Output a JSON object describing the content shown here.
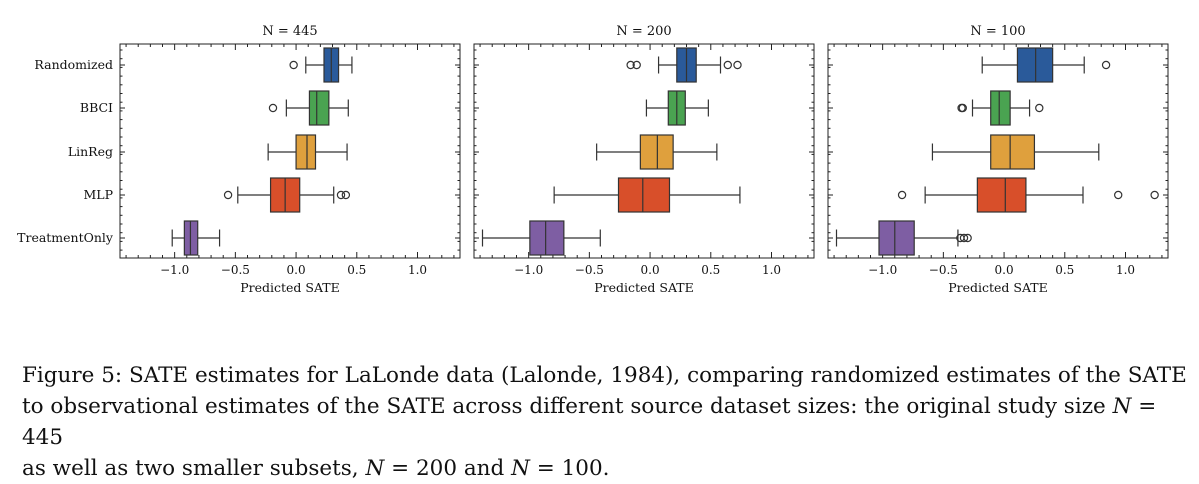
{
  "chart_data": [
    {
      "type": "boxplot",
      "title": "N = 445",
      "xlabel": "Predicted SATE",
      "xlim": [
        -1.45,
        1.35
      ],
      "xticks": [
        -1.0,
        -0.5,
        0.0,
        0.5,
        1.0
      ],
      "xtick_labels": [
        "−1.0",
        "−0.5",
        "0.0",
        "0.5",
        "1.0"
      ],
      "categories": [
        "Randomized",
        "BBCI",
        "LinReg",
        "MLP",
        "TreatmentOnly"
      ],
      "boxes": [
        {
          "category": "Randomized",
          "color": "#2a5a9a",
          "whislo": 0.08,
          "q1": 0.23,
          "med": 0.29,
          "q3": 0.35,
          "whishi": 0.46,
          "fliers": [
            -0.02
          ]
        },
        {
          "category": "BBCI",
          "color": "#4aa351",
          "whislo": -0.08,
          "q1": 0.11,
          "med": 0.17,
          "q3": 0.27,
          "whishi": 0.43,
          "fliers": [
            -0.19
          ]
        },
        {
          "category": "LinReg",
          "color": "#dfa03d",
          "whislo": -0.23,
          "q1": 0.0,
          "med": 0.09,
          "q3": 0.16,
          "whishi": 0.42,
          "fliers": []
        },
        {
          "category": "MLP",
          "color": "#d84f2a",
          "whislo": -0.48,
          "q1": -0.21,
          "med": -0.09,
          "q3": 0.03,
          "whishi": 0.31,
          "fliers": [
            -0.56,
            0.37,
            0.41
          ]
        },
        {
          "category": "TreatmentOnly",
          "color": "#7e5ea3",
          "whislo": -1.02,
          "q1": -0.92,
          "med": -0.87,
          "q3": -0.81,
          "whishi": -0.63,
          "fliers": []
        }
      ]
    },
    {
      "type": "boxplot",
      "title": "N = 200",
      "xlabel": "Predicted SATE",
      "xlim": [
        -1.45,
        1.35
      ],
      "xticks": [
        -1.0,
        -0.5,
        0.0,
        0.5,
        1.0
      ],
      "xtick_labels": [
        "−1.0",
        "−0.5",
        "0.0",
        "0.5",
        "1.0"
      ],
      "categories": [
        "Randomized",
        "BBCI",
        "LinReg",
        "MLP",
        "TreatmentOnly"
      ],
      "boxes": [
        {
          "category": "Randomized",
          "color": "#2a5a9a",
          "whislo": 0.07,
          "q1": 0.22,
          "med": 0.3,
          "q3": 0.38,
          "whishi": 0.58,
          "fliers": [
            -0.16,
            -0.11,
            0.64,
            0.72
          ]
        },
        {
          "category": "BBCI",
          "color": "#4aa351",
          "whislo": -0.03,
          "q1": 0.15,
          "med": 0.22,
          "q3": 0.29,
          "whishi": 0.48,
          "fliers": []
        },
        {
          "category": "LinReg",
          "color": "#dfa03d",
          "whislo": -0.44,
          "q1": -0.08,
          "med": 0.06,
          "q3": 0.19,
          "whishi": 0.55,
          "fliers": []
        },
        {
          "category": "MLP",
          "color": "#d84f2a",
          "whislo": -0.79,
          "q1": -0.26,
          "med": -0.06,
          "q3": 0.16,
          "whishi": 0.74,
          "fliers": []
        },
        {
          "category": "TreatmentOnly",
          "color": "#7e5ea3",
          "whislo": -1.38,
          "q1": -0.99,
          "med": -0.86,
          "q3": -0.71,
          "whishi": -0.41,
          "fliers": []
        }
      ]
    },
    {
      "type": "boxplot",
      "title": "N = 100",
      "xlabel": "Predicted SATE",
      "xlim": [
        -1.45,
        1.35
      ],
      "xticks": [
        -1.0,
        -0.5,
        0.0,
        0.5,
        1.0
      ],
      "xtick_labels": [
        "−1.0",
        "−0.5",
        "0.0",
        "0.5",
        "1.0"
      ],
      "categories": [
        "Randomized",
        "BBCI",
        "LinReg",
        "MLP",
        "TreatmentOnly"
      ],
      "boxes": [
        {
          "category": "Randomized",
          "color": "#2a5a9a",
          "whislo": -0.18,
          "q1": 0.11,
          "med": 0.26,
          "q3": 0.4,
          "whishi": 0.66,
          "fliers": [
            0.84
          ]
        },
        {
          "category": "BBCI",
          "color": "#4aa351",
          "whislo": -0.26,
          "q1": -0.11,
          "med": -0.04,
          "q3": 0.05,
          "whishi": 0.21,
          "fliers": [
            -0.35,
            -0.34,
            0.29
          ]
        },
        {
          "category": "LinReg",
          "color": "#dfa03d",
          "whislo": -0.59,
          "q1": -0.11,
          "med": 0.05,
          "q3": 0.25,
          "whishi": 0.78,
          "fliers": []
        },
        {
          "category": "MLP",
          "color": "#d84f2a",
          "whislo": -0.65,
          "q1": -0.22,
          "med": 0.01,
          "q3": 0.18,
          "whishi": 0.65,
          "fliers": [
            -0.84,
            0.94,
            1.24
          ]
        },
        {
          "category": "TreatmentOnly",
          "color": "#7e5ea3",
          "whislo": -1.38,
          "q1": -1.03,
          "med": -0.9,
          "q3": -0.74,
          "whishi": -0.38,
          "fliers": [
            -0.36,
            -0.33,
            -0.3
          ]
        }
      ]
    }
  ],
  "caption": {
    "line1": "Figure 5: SATE estimates for LaLonde data (Lalonde, 1984), comparing randomized estimates of the SATE",
    "line2_a": "to observational estimates of the SATE across different source dataset sizes: the original study size ",
    "line2_math": "N",
    "line2_b": " = 445",
    "line3_a": "as well as two smaller subsets, ",
    "line3_math1": "N",
    "line3_b": " = 200 and ",
    "line3_math2": "N",
    "line3_c": " = 100."
  }
}
